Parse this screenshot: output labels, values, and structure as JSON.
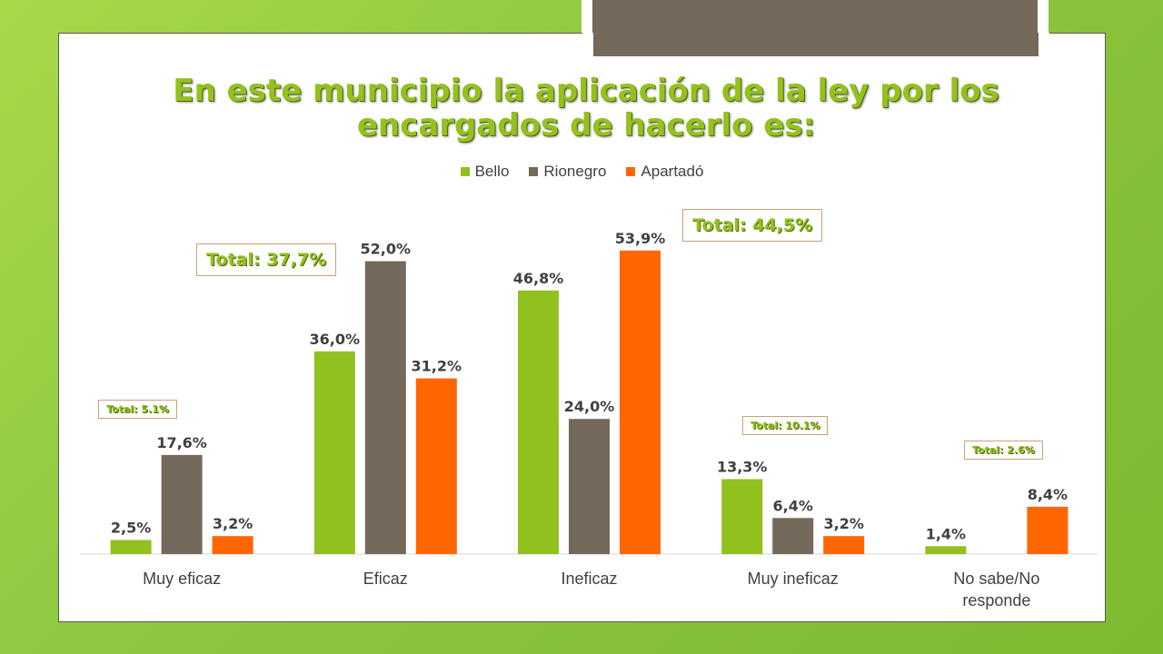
{
  "title": "En este municipio la aplicación de la ley por los encargados de hacerlo es:",
  "totals": [
    {
      "label": "Total: 37,7%"
    },
    {
      "label": "Total: 44,5%"
    },
    {
      "label": "Total: 5.1%"
    },
    {
      "label": "Total: 10.1%"
    },
    {
      "label": "Total: 2.6%"
    }
  ],
  "chart_data": {
    "type": "bar",
    "title": "En este municipio la aplicación de la ley por los encargados de hacerlo es:",
    "categories": [
      "Muy eficaz",
      "Eficaz",
      "Ineficaz",
      "Muy ineficaz",
      "No sabe/No responde"
    ],
    "series": [
      {
        "name": "Bello",
        "color": "#92c01f",
        "values": [
          2.5,
          36.0,
          46.8,
          13.3,
          1.4
        ],
        "labels": [
          "2,5%",
          "36,0%",
          "46,8%",
          "13,3%",
          "1,4%"
        ]
      },
      {
        "name": "Rionegro",
        "color": "#74695a",
        "values": [
          17.6,
          52.0,
          24.0,
          6.4,
          null
        ],
        "labels": [
          "17,6%",
          "52,0%",
          "24,0%",
          "6,4%",
          ""
        ]
      },
      {
        "name": "Apartadó",
        "color": "#ff6600",
        "values": [
          3.2,
          31.2,
          53.9,
          3.2,
          8.4
        ],
        "labels": [
          "3,2%",
          "31,2%",
          "53,9%",
          "3,2%",
          "8,4%"
        ]
      }
    ],
    "ylim": [
      0,
      60
    ],
    "legend": "top",
    "grid": false,
    "xlabel": "",
    "ylabel": ""
  }
}
